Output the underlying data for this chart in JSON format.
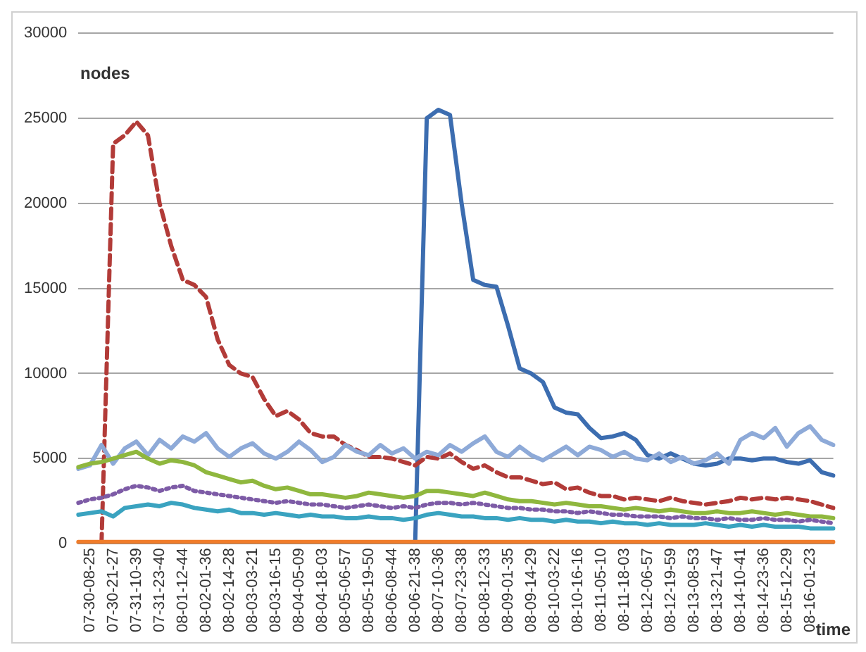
{
  "chart_data": {
    "type": "line",
    "xlabel": "time",
    "ylabel": "nodes",
    "ylim": [
      0,
      30000
    ],
    "yticks": [
      0,
      5000,
      10000,
      15000,
      20000,
      25000,
      30000
    ],
    "grid": "y",
    "marker": "none",
    "categories": [
      null,
      "07-30-08-25",
      null,
      "07-30-21-27",
      null,
      "07-31-10-39",
      null,
      "07-31-23-40",
      null,
      "08-01-12-44",
      null,
      "08-02-01-36",
      null,
      "08-02-14-28",
      null,
      "08-03-03-21",
      null,
      "08-03-16-15",
      null,
      "08-04-05-09",
      null,
      "08-04-18-03",
      null,
      "08-05-06-57",
      null,
      "08-05-19-50",
      null,
      "08-06-08-44",
      null,
      "08-06-21-38",
      null,
      "08-07-10-36",
      null,
      "08-07-23-38",
      null,
      "08-08-12-33",
      null,
      "08-09-01-35",
      null,
      "08-09-14-29",
      null,
      "08-10-03-22",
      null,
      "08-10-16-16",
      null,
      "08-11-05-10",
      null,
      "08-11-18-03",
      null,
      "08-12-06-57",
      null,
      "08-12-19-59",
      null,
      "08-13-08-53",
      null,
      "08-13-21-47",
      null,
      "08-14-10-41",
      null,
      "08-14-23-36",
      null,
      "08-15-12-29",
      null,
      "08-16-01-23",
      null,
      null
    ],
    "series": [
      {
        "color": "#f07c2a",
        "line_style": "solid",
        "values": [
          100,
          100,
          100,
          100,
          100,
          100,
          100,
          100,
          100,
          100,
          100,
          100,
          100,
          100,
          100,
          100,
          100,
          100,
          100,
          100,
          100,
          100,
          100,
          100,
          100,
          100,
          100,
          100,
          100,
          100,
          100,
          100,
          100,
          100,
          100,
          100,
          100,
          100,
          100,
          100,
          100,
          100,
          100,
          100,
          100,
          100,
          100,
          100,
          100,
          100,
          100,
          100,
          100,
          100,
          100,
          100,
          100,
          100,
          100,
          100,
          100,
          100,
          100,
          100,
          100,
          100
        ]
      },
      {
        "color": "#3aa3c0",
        "line_style": "solid",
        "values": [
          1700,
          1800,
          1900,
          1600,
          2100,
          2200,
          2300,
          2200,
          2400,
          2300,
          2100,
          2000,
          1900,
          2000,
          1800,
          1800,
          1700,
          1800,
          1700,
          1600,
          1700,
          1600,
          1600,
          1500,
          1500,
          1600,
          1500,
          1500,
          1400,
          1500,
          1700,
          1800,
          1700,
          1600,
          1600,
          1500,
          1500,
          1400,
          1500,
          1400,
          1400,
          1300,
          1400,
          1300,
          1300,
          1200,
          1300,
          1200,
          1200,
          1100,
          1200,
          1100,
          1100,
          1100,
          1200,
          1100,
          1000,
          1100,
          1000,
          1100,
          1000,
          1000,
          1000,
          900,
          900,
          900
        ]
      },
      {
        "color": "#7d5ba6",
        "line_style": "dotted",
        "values": [
          2400,
          2600,
          2700,
          2900,
          3200,
          3400,
          3300,
          3100,
          3300,
          3400,
          3100,
          3000,
          2900,
          2800,
          2700,
          2600,
          2500,
          2400,
          2500,
          2400,
          2300,
          2300,
          2200,
          2100,
          2200,
          2300,
          2200,
          2100,
          2200,
          2100,
          2300,
          2400,
          2400,
          2300,
          2400,
          2300,
          2200,
          2100,
          2100,
          2000,
          2000,
          1900,
          1900,
          1800,
          1900,
          1800,
          1700,
          1700,
          1600,
          1600,
          1600,
          1500,
          1600,
          1500,
          1500,
          1400,
          1500,
          1400,
          1400,
          1500,
          1400,
          1400,
          1300,
          1400,
          1300,
          1200
        ]
      },
      {
        "color": "#8fb73e",
        "line_style": "solid",
        "values": [
          4500,
          4700,
          4800,
          5000,
          5200,
          5400,
          5000,
          4700,
          4900,
          4800,
          4600,
          4200,
          4000,
          3800,
          3600,
          3700,
          3400,
          3200,
          3300,
          3100,
          2900,
          2900,
          2800,
          2700,
          2800,
          3000,
          2900,
          2800,
          2700,
          2800,
          3100,
          3100,
          3000,
          2900,
          2800,
          3000,
          2800,
          2600,
          2500,
          2500,
          2400,
          2300,
          2400,
          2300,
          2200,
          2200,
          2100,
          2000,
          2100,
          2000,
          1900,
          2000,
          1900,
          1800,
          1800,
          1900,
          1800,
          1800,
          1900,
          1800,
          1700,
          1800,
          1700,
          1600,
          1600,
          1500
        ]
      },
      {
        "color": "#8eaad8",
        "line_style": "solid",
        "values": [
          4400,
          4600,
          5800,
          4700,
          5600,
          6000,
          5200,
          6100,
          5600,
          6300,
          6000,
          6500,
          5600,
          5100,
          5600,
          5900,
          5300,
          5000,
          5400,
          6000,
          5500,
          4800,
          5100,
          5800,
          5400,
          5200,
          5800,
          5300,
          5600,
          5000,
          5400,
          5200,
          5800,
          5400,
          5900,
          6300,
          5400,
          5100,
          5700,
          5200,
          4900,
          5300,
          5700,
          5200,
          5700,
          5500,
          5100,
          5400,
          5000,
          4900,
          5300,
          4800,
          5100,
          4700,
          4900,
          5300,
          4700,
          6100,
          6500,
          6200,
          6800,
          5700,
          6500,
          6900,
          6100,
          5800
        ]
      },
      {
        "color": "#b23b38",
        "line_style": "dashed",
        "values": [
          null,
          null,
          0,
          23500,
          24000,
          24800,
          24000,
          20000,
          17500,
          15500,
          15200,
          14500,
          12000,
          10500,
          10000,
          9800,
          8500,
          7500,
          7800,
          7300,
          6500,
          6300,
          6300,
          5800,
          5500,
          5100,
          5100,
          5000,
          4800,
          4600,
          5100,
          5000,
          5300,
          4800,
          4400,
          4600,
          4200,
          3900,
          3900,
          3700,
          3500,
          3600,
          3200,
          3300,
          3000,
          2800,
          2800,
          2600,
          2700,
          2600,
          2500,
          2700,
          2500,
          2400,
          2300,
          2400,
          2500,
          2700,
          2600,
          2700,
          2600,
          2700,
          2600,
          2500,
          2300,
          2100
        ]
      },
      {
        "color": "#3c6db0",
        "line_style": "solid",
        "values": [
          null,
          null,
          null,
          null,
          null,
          null,
          null,
          null,
          null,
          null,
          null,
          null,
          null,
          null,
          null,
          null,
          null,
          null,
          null,
          null,
          null,
          null,
          null,
          null,
          null,
          null,
          null,
          null,
          null,
          0,
          25000,
          25500,
          25200,
          20000,
          15500,
          15200,
          15100,
          12800,
          10300,
          10000,
          9500,
          8000,
          7700,
          7600,
          6800,
          6200,
          6300,
          6500,
          6100,
          5200,
          5000,
          5300,
          5000,
          4700,
          4600,
          4700,
          5000,
          5000,
          4900,
          5000,
          5000,
          4800,
          4700,
          4900,
          4200,
          4000
        ]
      }
    ]
  }
}
